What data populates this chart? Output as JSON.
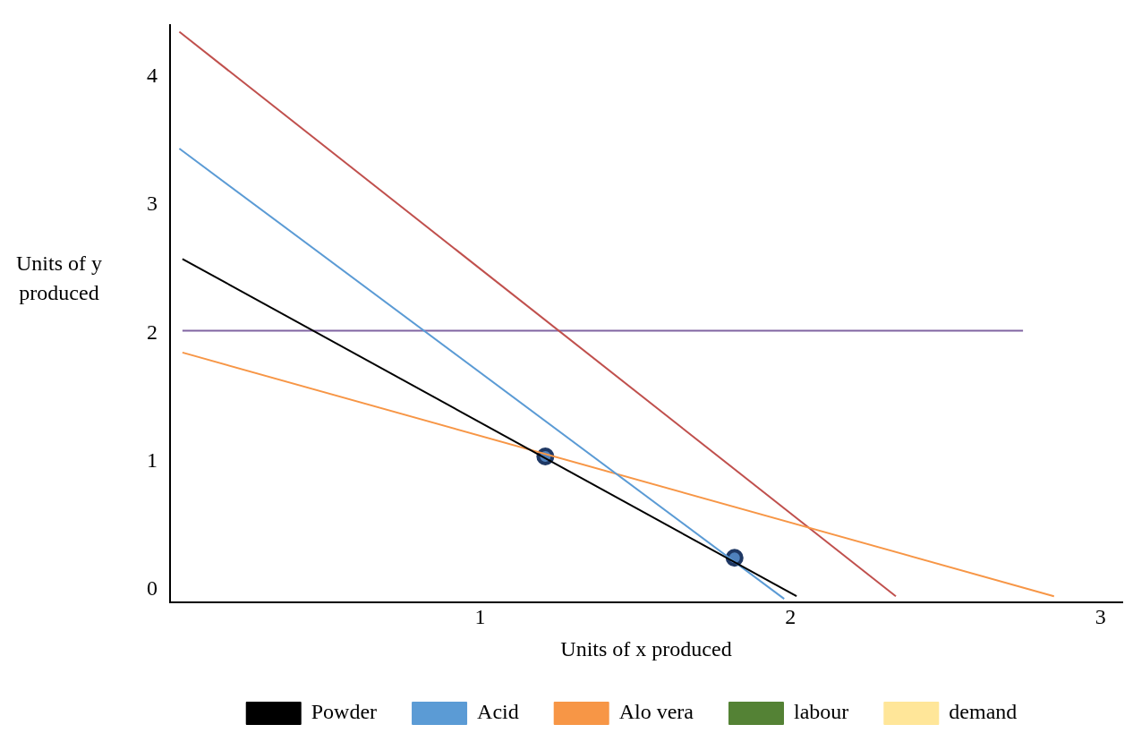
{
  "chart_data": {
    "type": "line",
    "xlabel": "Units of x produced",
    "ylabel": "Units of y produced",
    "xlim": [
      0,
      3.07
    ],
    "ylim": [
      -0.1,
      4.4
    ],
    "xticks": [
      1,
      2,
      3
    ],
    "yticks": [
      0,
      1,
      2,
      3,
      4
    ],
    "grid": false,
    "legend": "bottom",
    "marker": "none",
    "line_style": "solid",
    "series": [
      {
        "name": "Powder",
        "color": "#000000",
        "x": [
          0.04,
          2.02
        ],
        "values": [
          2.58,
          -0.05
        ]
      },
      {
        "name": "Acid",
        "color": "#5b9bd5",
        "x": [
          0.03,
          1.98
        ],
        "values": [
          3.44,
          -0.07
        ]
      },
      {
        "name": "Alo vera",
        "color": "#f79646",
        "x": [
          0.04,
          2.85
        ],
        "values": [
          1.85,
          -0.05
        ]
      },
      {
        "name": "labour",
        "color": "#548235"
      },
      {
        "name": "demand",
        "color": "#ffe699"
      },
      {
        "color": "#c0504d",
        "x": [
          0.03,
          2.34
        ],
        "values": [
          4.35,
          -0.05
        ]
      },
      {
        "color": "#8064a2",
        "x": [
          0.04,
          2.75
        ],
        "values": [
          2.02,
          2.02
        ]
      },
      {
        "type": "scatter",
        "marker": "circle",
        "color": "#1f3864",
        "x": [
          1.21,
          1.82
        ],
        "values": [
          1.04,
          0.25
        ]
      }
    ]
  }
}
